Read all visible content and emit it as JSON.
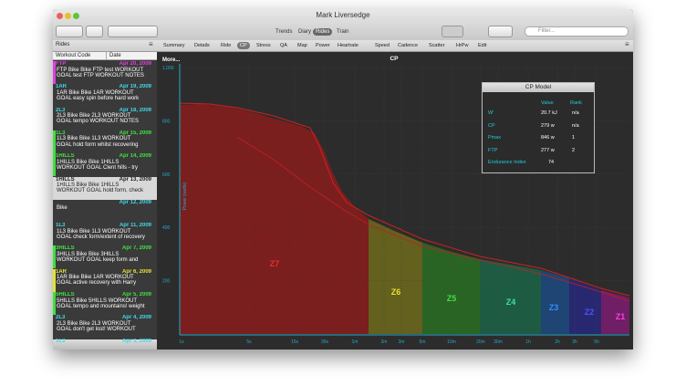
{
  "window": {
    "title": "Mark Liversedge"
  },
  "toolbar": {
    "views": [
      {
        "label": "Trends"
      },
      {
        "label": "Diary"
      },
      {
        "label": "Rides",
        "selected": true
      },
      {
        "label": "Train"
      }
    ],
    "search_placeholder": "Filter..."
  },
  "sidebar": {
    "title": "Rides",
    "columns": [
      "Workout Code",
      "Date"
    ],
    "rides": [
      {
        "code": "FTP",
        "date": "Apr 20, 2009",
        "color": "#e040e0",
        "lines": [
          "FTP Bike Bike FTP test WORKOUT",
          "GOAL test FTP  WORKOUT NOTES"
        ]
      },
      {
        "code": "1AR",
        "date": "Apr 19, 2009",
        "color": "#40d8e8",
        "lines": [
          "1AR Bike Bike 1AR WORKOUT",
          "GOAL easy spin before hard work"
        ]
      },
      {
        "code": "2L3",
        "date": "Apr 18, 2009",
        "color": "#40d8e8",
        "lines": [
          "2L3 Bike Bike 2L3 WORKOUT",
          "GOAL tempo WORKOUT NOTES"
        ]
      },
      {
        "code": "1L3",
        "date": "Apr 15, 2009",
        "color": "#40e040",
        "lines": [
          "1L3 Bike Bike 1L3 WORKOUT",
          "GOAL hold form whilst recovering"
        ]
      },
      {
        "code": "1HILLS",
        "date": "Apr 14, 2009",
        "color": "#40e040",
        "lines": [
          "1HILLS Bike Bike 1HILLS",
          "WORKOUT GOAL Clent hills - try"
        ]
      },
      {
        "code": "1HILLS",
        "date": "Apr 13, 2009",
        "color": "#40e040",
        "selected": true,
        "lines": [
          "1HILLS Bike Bike 1HILLS",
          "WORKOUT GOAL hold form, check"
        ]
      },
      {
        "code": "",
        "date": "Apr 12, 2009",
        "color": "#40d8e8",
        "lines": [
          "Bike"
        ]
      },
      {
        "code": "1L3",
        "date": "Apr 11, 2009",
        "color": "#40d8e8",
        "lines": [
          "1L3 Bike Bike 1L3 WORKOUT",
          "GOAL check form/extent of recovery"
        ]
      },
      {
        "code": "3HILLS",
        "date": "Apr 7, 2009",
        "color": "#40e040",
        "lines": [
          "3HILLS Bike Bike 3HILLS",
          "WORKOUT GOAL keep form and"
        ]
      },
      {
        "code": "1AR",
        "date": "Apr 6, 2009",
        "color": "#e8e030",
        "lines": [
          "1AR Bike Bike 1AR WORKOUT",
          "GOAL active recovery with Harry"
        ]
      },
      {
        "code": "5HILLS",
        "date": "Apr 5, 2009",
        "color": "#40e040",
        "lines": [
          "5HILLS Bike 5HILLS WORKOUT",
          "GOAL tempo and mountains! weight"
        ]
      },
      {
        "code": "2L3",
        "date": "Apr 4, 2009",
        "color": "#40d8e8",
        "lines": [
          "2L3 Bike Bike 2L3 WORKOUT",
          "GOAL don't get lost! WORKOUT"
        ]
      },
      {
        "code": "1L3",
        "date": "Apr 3, 2009",
        "color": "#40d8e8",
        "lines": []
      }
    ]
  },
  "tabs": [
    {
      "label": "Summary"
    },
    {
      "label": "Details"
    },
    {
      "label": "Ride"
    },
    {
      "label": "CP",
      "selected": true
    },
    {
      "label": "Stress"
    },
    {
      "label": "QA"
    },
    {
      "label": "Map"
    },
    {
      "label": "Power"
    },
    {
      "label": "Heartrate"
    },
    {
      "label": "Speed"
    },
    {
      "label": "Cadence"
    },
    {
      "label": "Scatter"
    },
    {
      "label": "HrPw"
    },
    {
      "label": "Edit"
    }
  ],
  "chart": {
    "more_link": "More...",
    "title": "CP",
    "y_axis_label": "Power (watts)",
    "yticks": [
      {
        "value": 1000,
        "label": "1,000"
      },
      800,
      600,
      400,
      200
    ],
    "xticks": [
      "1s",
      "5s",
      "15s",
      "30s",
      "1m",
      "2m",
      "3m",
      "5m",
      "10m",
      "20m",
      "30m",
      "1h",
      "2h",
      "3h",
      "5h"
    ],
    "zones": [
      {
        "label": "Z7",
        "color": "#e03030",
        "fill": "#8a1c1c"
      },
      {
        "label": "Z6",
        "color": "#e8e030",
        "fill": "#6e6a1c"
      },
      {
        "label": "Z5",
        "color": "#40e040",
        "fill": "#2a6e24"
      },
      {
        "label": "Z4",
        "color": "#40e0a0",
        "fill": "#1c6448"
      },
      {
        "label": "Z3",
        "color": "#3090ff",
        "fill": "#1c4a80"
      },
      {
        "label": "Z2",
        "color": "#5050ff",
        "fill": "#28287e"
      },
      {
        "label": "Z1",
        "color": "#ff40e0",
        "fill": "#7c1c70"
      }
    ]
  },
  "cp_model": {
    "title": "CP Model",
    "columns": [
      "Value",
      "Rank"
    ],
    "rows": [
      {
        "name": "W'",
        "value": "20.7 kJ",
        "rank": "n/a"
      },
      {
        "name": "CP",
        "value": "279 w",
        "rank": "n/a"
      },
      {
        "name": "Pmax",
        "value": "846 w",
        "rank": "1"
      },
      {
        "name": "FTP",
        "value": "277 w",
        "rank": "2"
      },
      {
        "name": "Endurance Index",
        "value": "74"
      }
    ]
  }
}
